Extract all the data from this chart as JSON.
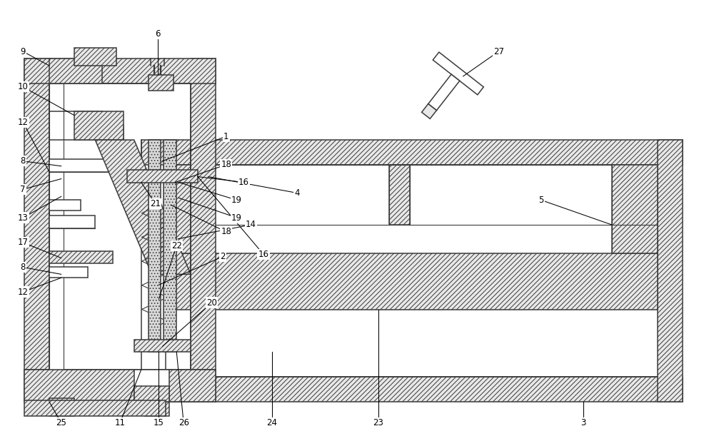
{
  "bg_color": "#ffffff",
  "line_color": "#3a3a3a",
  "figsize": [
    10.0,
    6.25
  ],
  "dpi": 100
}
